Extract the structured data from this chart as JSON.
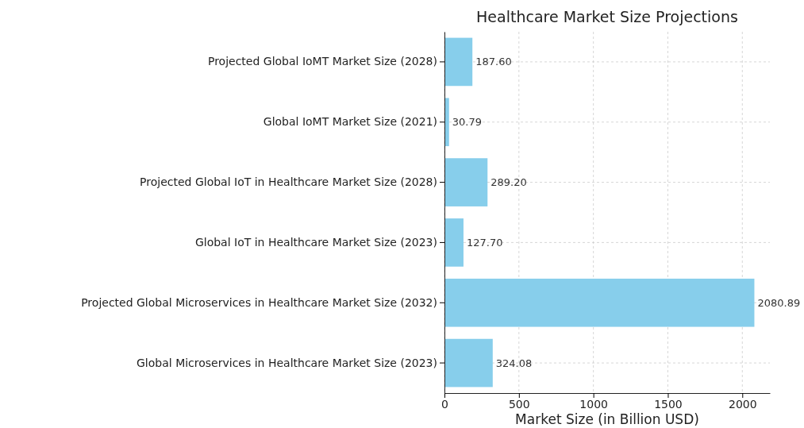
{
  "chart_data": {
    "type": "bar",
    "orientation": "horizontal",
    "title": "Healthcare Market Size Projections",
    "xlabel": "Market Size (in Billion USD)",
    "categories": [
      "Projected Global IoMT Market Size (2028)",
      "Global IoMT Market Size (2021)",
      "Projected Global IoT in Healthcare Market Size (2028)",
      "Global IoT in Healthcare Market Size (2023)",
      "Projected Global Microservices in Healthcare Market Size (2032)",
      "Global Microservices in Healthcare Market Size (2023)"
    ],
    "values": [
      187.6,
      30.79,
      289.2,
      127.7,
      2080.89,
      324.08
    ],
    "value_labels": [
      "187.60",
      "30.79",
      "289.20",
      "127.70",
      "2080.89",
      "324.08"
    ],
    "color": "#87ceeb",
    "xlim": [
      0,
      2185
    ],
    "xticks": [
      0,
      500,
      1000,
      1500,
      2000
    ],
    "grid": true
  }
}
